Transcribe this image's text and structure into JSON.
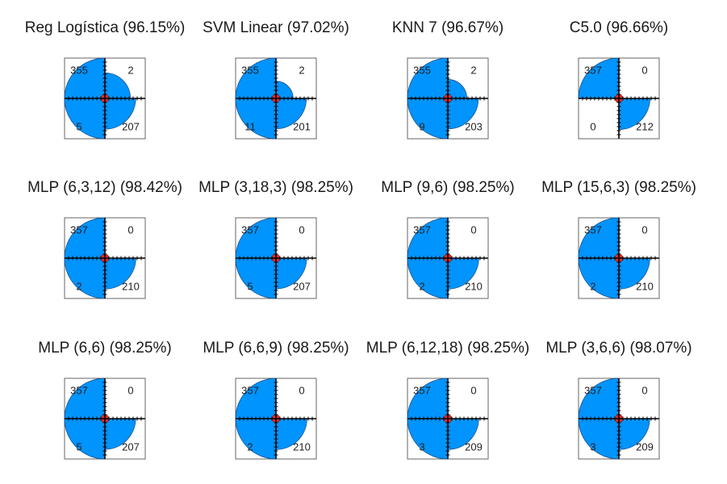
{
  "colors": {
    "quadrant": "#0094FF",
    "center_circle": "#E02A2A",
    "axis": "#000000",
    "frame": "#666666"
  },
  "chart_data": [
    {
      "type": "fourfold",
      "title": "Reg Logística (96.15%)",
      "model": "Reg Logística",
      "accuracy_pct": 96.15,
      "counts": {
        "top_left": 355,
        "top_right": 2,
        "bottom_left": 5,
        "bottom_right": 207
      }
    },
    {
      "type": "fourfold",
      "title": "SVM Linear (97.02%)",
      "model": "SVM Linear",
      "accuracy_pct": 97.02,
      "counts": {
        "top_left": 355,
        "top_right": 2,
        "bottom_left": 11,
        "bottom_right": 201
      }
    },
    {
      "type": "fourfold",
      "title": "KNN 7 (96.67%)",
      "model": "KNN 7",
      "accuracy_pct": 96.67,
      "counts": {
        "top_left": 355,
        "top_right": 2,
        "bottom_left": 9,
        "bottom_right": 203
      }
    },
    {
      "type": "fourfold",
      "title": "C5.0 (96.66%)",
      "model": "C5.0",
      "accuracy_pct": 96.66,
      "counts": {
        "top_left": 357,
        "top_right": 0,
        "bottom_left": 0,
        "bottom_right": 212
      }
    },
    {
      "type": "fourfold",
      "title": "MLP (6,3,12) (98.42%)",
      "model": "MLP (6,3,12)",
      "accuracy_pct": 98.42,
      "counts": {
        "top_left": 357,
        "top_right": 0,
        "bottom_left": 2,
        "bottom_right": 210
      }
    },
    {
      "type": "fourfold",
      "title": "MLP (3,18,3) (98.25%)",
      "model": "MLP (3,18,3)",
      "accuracy_pct": 98.25,
      "counts": {
        "top_left": 357,
        "top_right": 0,
        "bottom_left": 5,
        "bottom_right": 207
      }
    },
    {
      "type": "fourfold",
      "title": "MLP (9,6) (98.25%)",
      "model": "MLP (9,6)",
      "accuracy_pct": 98.25,
      "counts": {
        "top_left": 357,
        "top_right": 0,
        "bottom_left": 2,
        "bottom_right": 210
      }
    },
    {
      "type": "fourfold",
      "title": "MLP (15,6,3) (98.25%)",
      "model": "MLP (15,6,3)",
      "accuracy_pct": 98.25,
      "counts": {
        "top_left": 357,
        "top_right": 0,
        "bottom_left": 2,
        "bottom_right": 210
      }
    },
    {
      "type": "fourfold",
      "title": "MLP (6,6) (98.25%)",
      "model": "MLP (6,6)",
      "accuracy_pct": 98.25,
      "counts": {
        "top_left": 357,
        "top_right": 0,
        "bottom_left": 5,
        "bottom_right": 207
      }
    },
    {
      "type": "fourfold",
      "title": "MLP (6,6,9) (98.25%)",
      "model": "MLP (6,6,9)",
      "accuracy_pct": 98.25,
      "counts": {
        "top_left": 357,
        "top_right": 0,
        "bottom_left": 2,
        "bottom_right": 210
      }
    },
    {
      "type": "fourfold",
      "title": "MLP (6,12,18) (98.25%)",
      "model": "MLP (6,12,18)",
      "accuracy_pct": 98.25,
      "counts": {
        "top_left": 357,
        "top_right": 0,
        "bottom_left": 3,
        "bottom_right": 209
      }
    },
    {
      "type": "fourfold",
      "title": "MLP (3,6,6) (98.07%)",
      "model": "MLP (3,6,6)",
      "accuracy_pct": 98.07,
      "counts": {
        "top_left": 357,
        "top_right": 0,
        "bottom_left": 3,
        "bottom_right": 209
      }
    }
  ]
}
